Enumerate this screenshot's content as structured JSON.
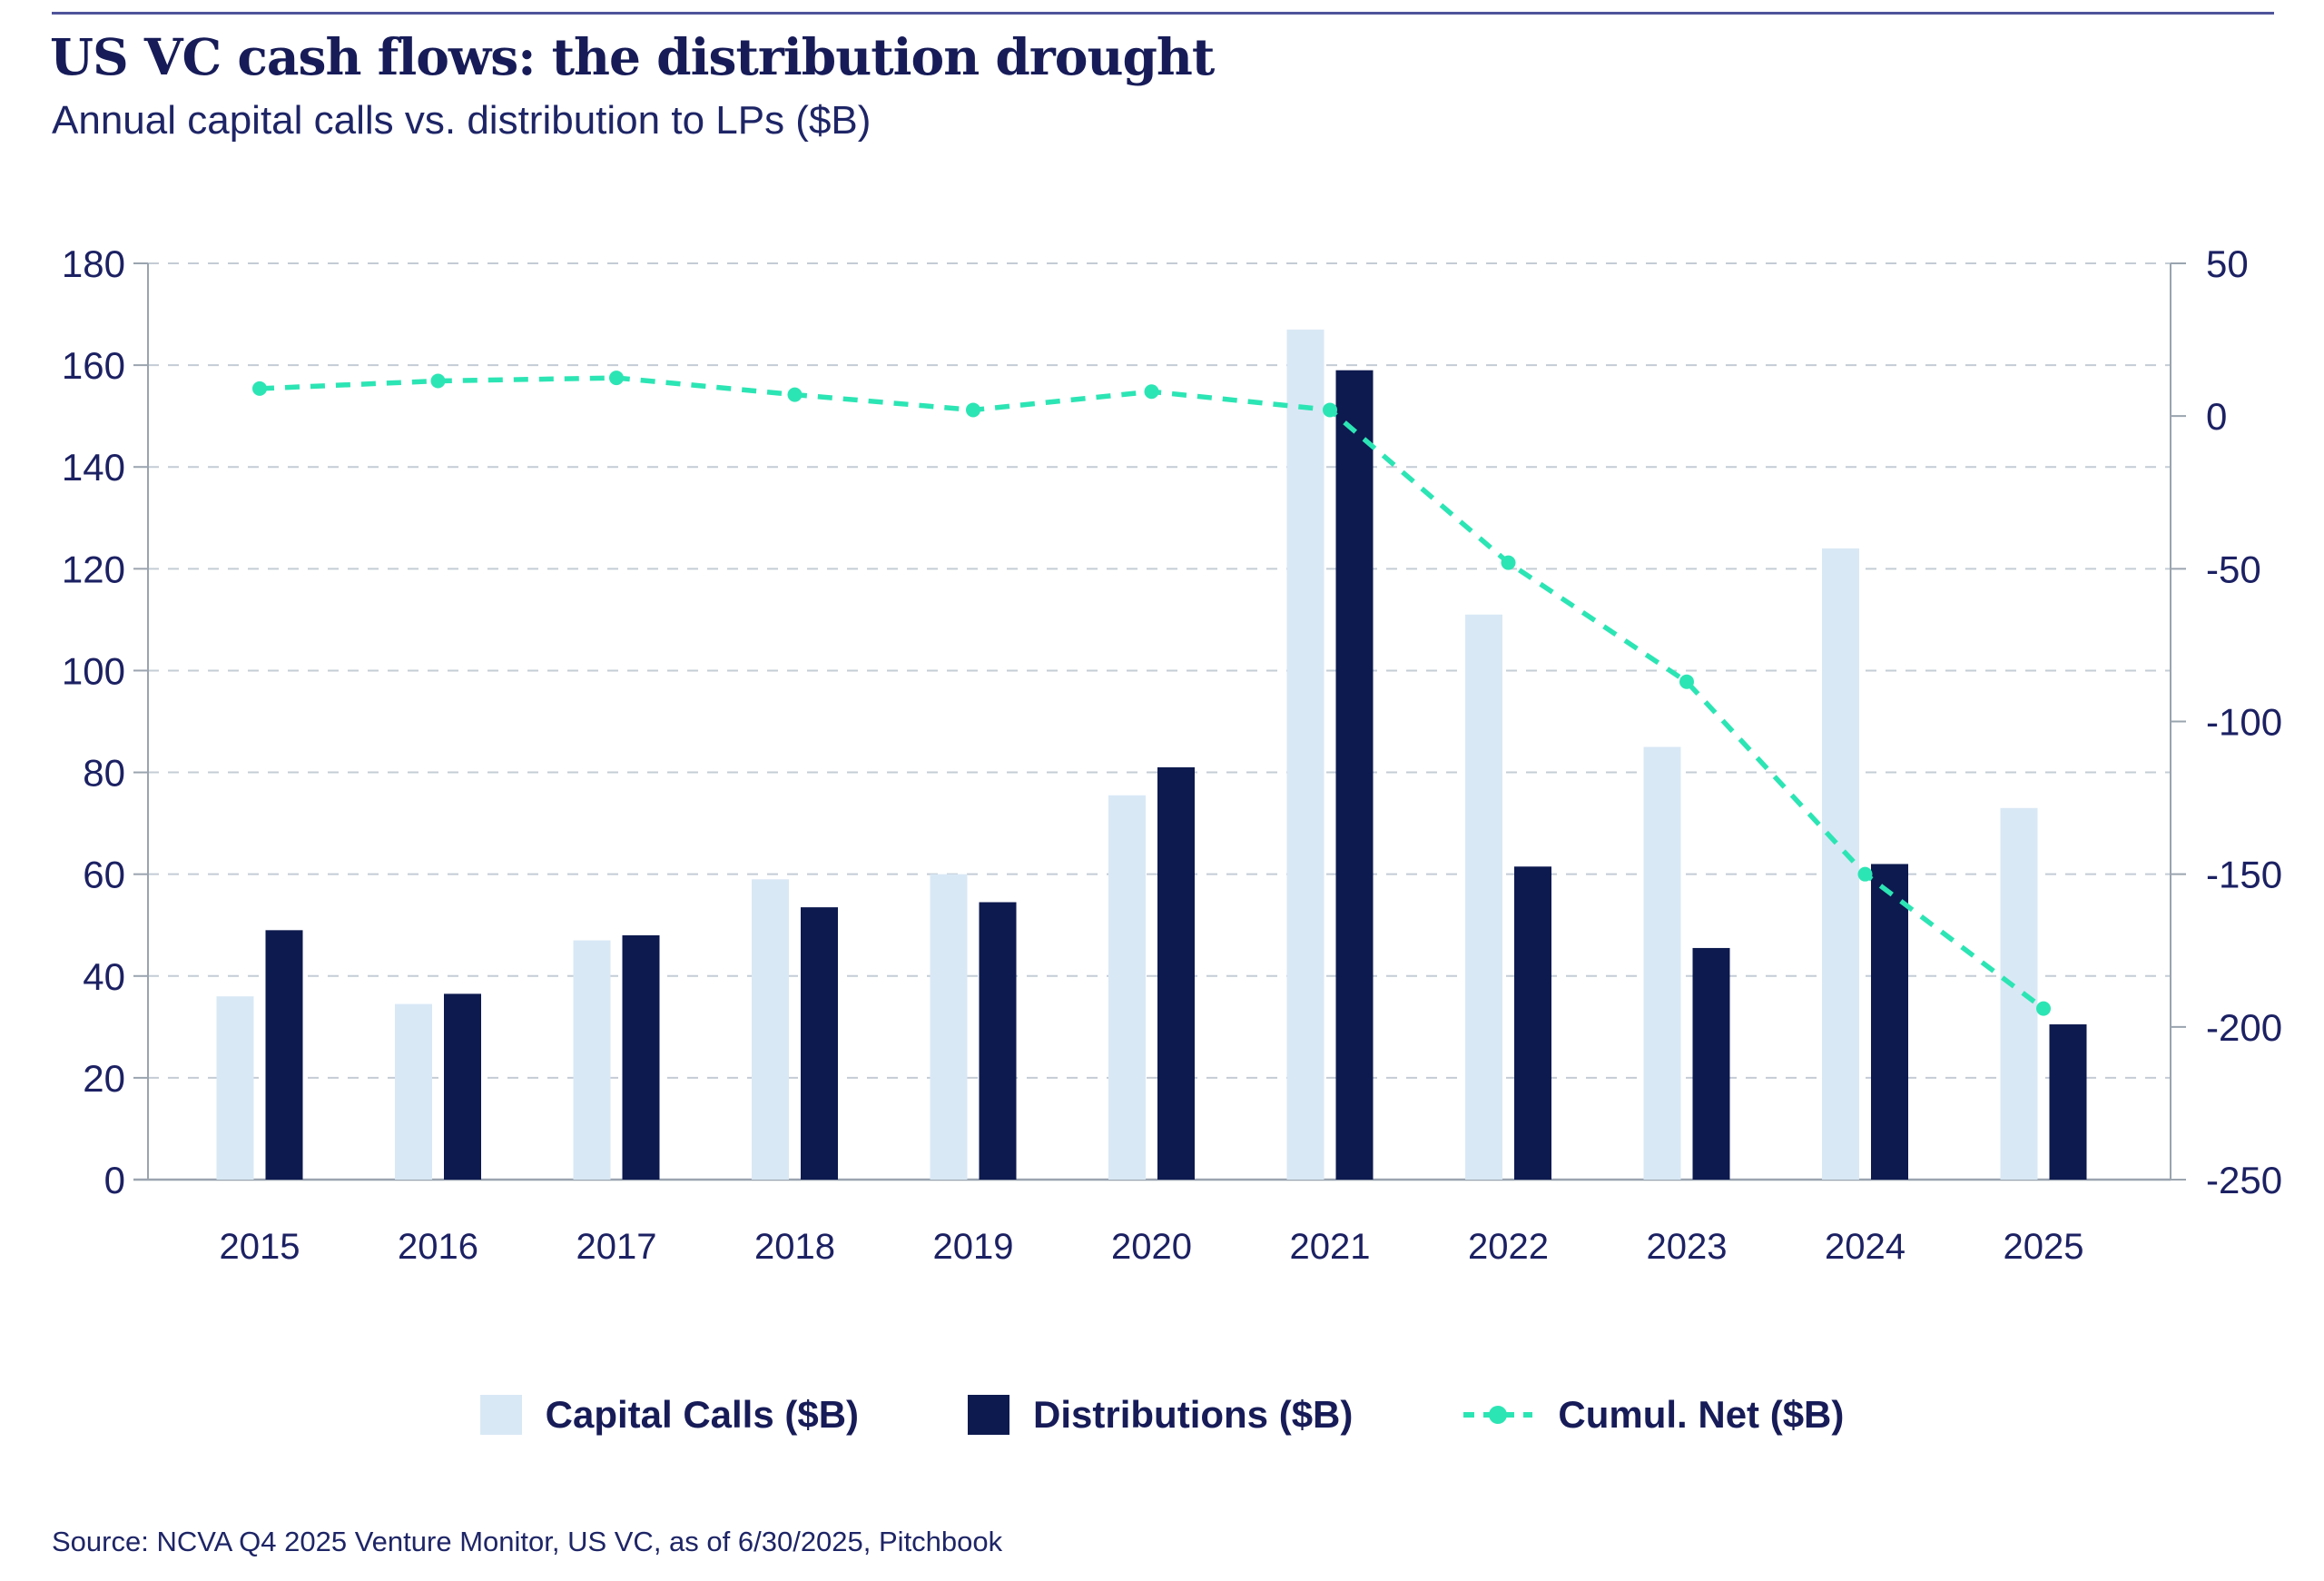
{
  "header": {
    "title": "US VC cash flows: the distribution drought",
    "subtitle": "Annual capital calls vs. distribution to LPs ($B)"
  },
  "legend": {
    "items": [
      {
        "key": "capital_calls",
        "label": "Capital Calls ($B)"
      },
      {
        "key": "distributions",
        "label": "Distributions ($B)"
      },
      {
        "key": "cumul_net",
        "label": "Cumul. Net ($B)"
      }
    ]
  },
  "source": "Source: NCVA Q4 2025 Venture Monitor, US VC, as of 6/30/2025, Pitchbook",
  "colors": {
    "capital_calls": "#d9e8f5",
    "distributions": "#0d1a4f",
    "cumul_net": "#2ce5b4",
    "gridline": "#c4ccd5",
    "axis": "#9aa4af",
    "text": "#1c2163",
    "rule": "#4f549b"
  },
  "chart_data": {
    "type": "bar",
    "title": "US VC cash flows: the distribution drought",
    "subtitle": "Annual capital calls vs. distribution to LPs ($B)",
    "categories": [
      "2015",
      "2016",
      "2017",
      "2018",
      "2019",
      "2020",
      "2021",
      "2022",
      "2023",
      "2024",
      "2025"
    ],
    "series": [
      {
        "name": "Capital Calls ($B)",
        "type": "bar",
        "axis": "left",
        "values": [
          36,
          34.5,
          47,
          59,
          60,
          75.5,
          167,
          111,
          85,
          124,
          73
        ]
      },
      {
        "name": "Distributions ($B)",
        "type": "bar",
        "axis": "left",
        "values": [
          49,
          36.5,
          48,
          53.5,
          54.5,
          81,
          159,
          61.5,
          45.5,
          62,
          30.5
        ]
      },
      {
        "name": "Cumul. Net ($B)",
        "type": "line",
        "axis": "right",
        "values": [
          9,
          11.5,
          12.5,
          7,
          2,
          8,
          2,
          -48,
          -87,
          -150,
          -194
        ]
      }
    ],
    "axes": {
      "left": {
        "min": 0,
        "max": 180,
        "step": 20
      },
      "right": {
        "min": -250,
        "max": 50,
        "step": 50
      }
    },
    "grid": true,
    "grid_style": "dashed",
    "legend_position": "bottom"
  }
}
